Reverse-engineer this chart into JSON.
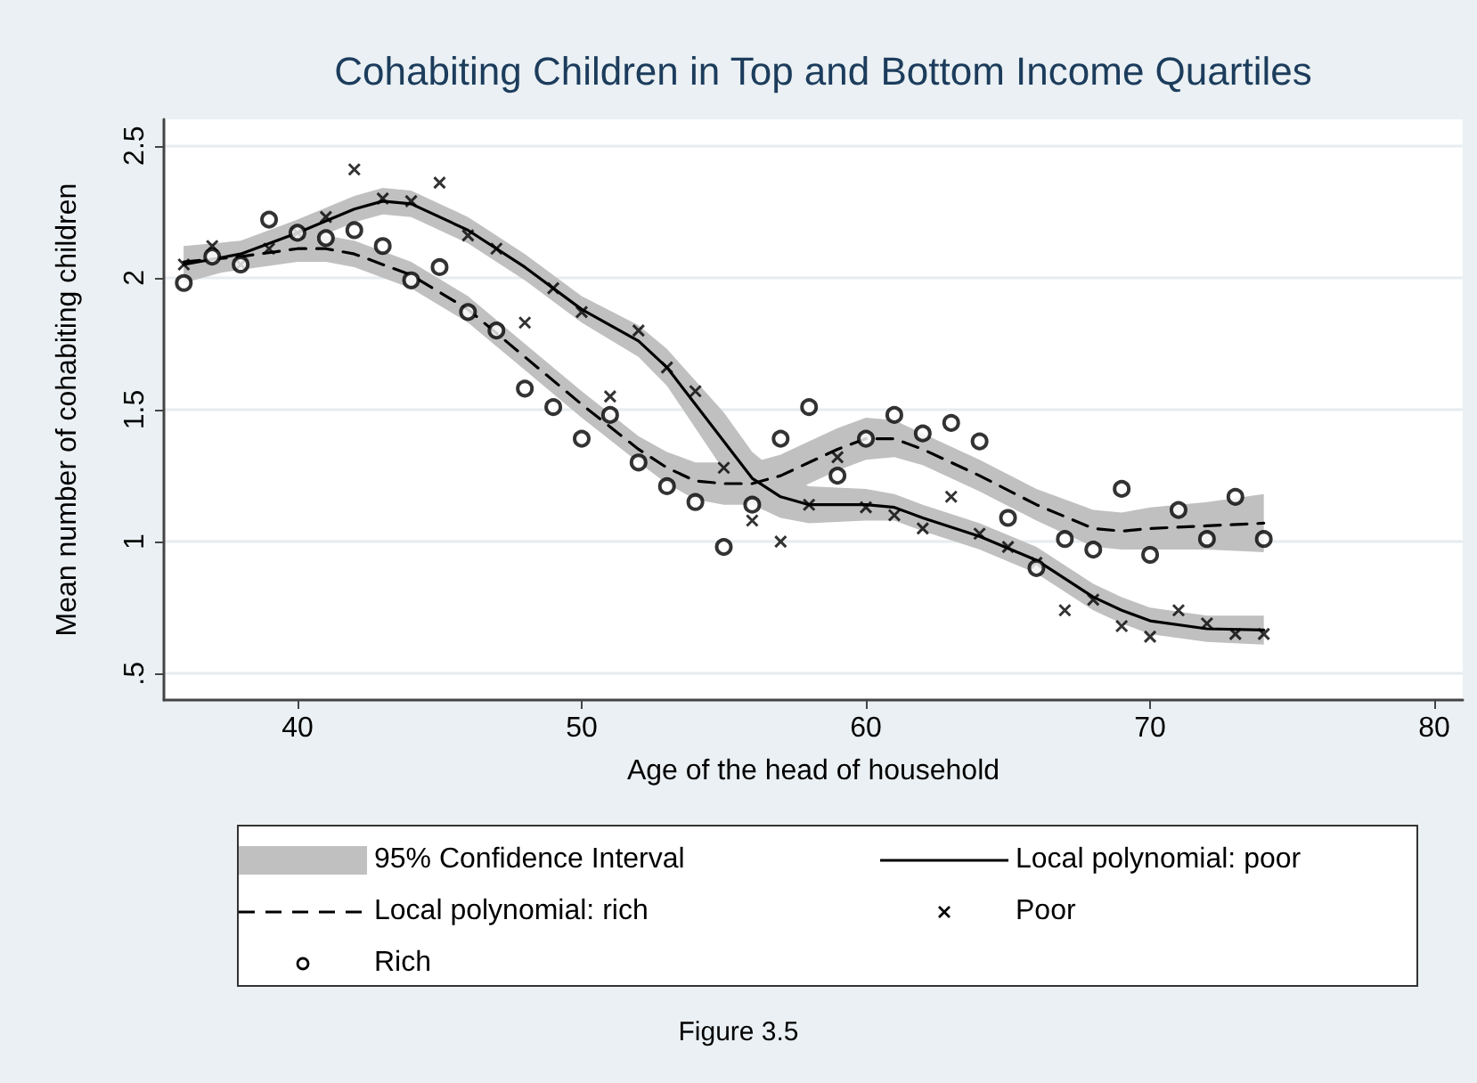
{
  "chart_data": {
    "type": "line",
    "title": "Cohabiting Children in Top and Bottom Income Quartiles",
    "xlabel": "Age of the head of household",
    "ylabel": "Mean number of cohabiting children",
    "annotations": [
      "95% Confidence Interval",
      "Figure 3.5"
    ],
    "xlim": [
      35.3,
      81
    ],
    "xticks": [
      40,
      50,
      60,
      70,
      80
    ],
    "ylim": [
      0.4,
      2.6
    ],
    "yticks": [
      {
        "value": 0.5,
        "label": ".5"
      },
      1,
      1.5,
      2,
      2.5
    ],
    "grid": "y",
    "legend": "bottom",
    "series": [
      {
        "name": "Local polynomial: poor",
        "type": "line",
        "color": "#000000",
        "marker": "none",
        "line_style": "solid",
        "x": [
          36,
          38,
          40,
          42,
          43,
          44,
          46,
          48,
          50,
          52,
          53,
          54,
          55,
          56,
          57,
          58,
          60,
          61,
          62,
          64,
          66,
          67,
          68,
          69,
          70,
          72,
          74
        ],
        "values": [
          2.05,
          2.09,
          2.17,
          2.26,
          2.29,
          2.28,
          2.18,
          2.04,
          1.88,
          1.76,
          1.66,
          1.52,
          1.38,
          1.24,
          1.17,
          1.14,
          1.14,
          1.13,
          1.09,
          1.02,
          0.93,
          0.86,
          0.79,
          0.74,
          0.7,
          0.67,
          0.665
        ],
        "lower": [
          1.98,
          2.04,
          2.12,
          2.21,
          2.24,
          2.23,
          2.13,
          1.99,
          1.83,
          1.7,
          1.59,
          1.43,
          1.27,
          1.14,
          1.09,
          1.07,
          1.08,
          1.08,
          1.04,
          0.97,
          0.88,
          0.81,
          0.74,
          0.69,
          0.65,
          0.62,
          0.61
        ],
        "upper": [
          2.12,
          2.14,
          2.22,
          2.31,
          2.34,
          2.33,
          2.23,
          2.09,
          1.93,
          1.82,
          1.73,
          1.61,
          1.49,
          1.34,
          1.25,
          1.21,
          1.2,
          1.18,
          1.14,
          1.07,
          0.98,
          0.91,
          0.84,
          0.79,
          0.75,
          0.72,
          0.72
        ]
      },
      {
        "name": "Local polynomial: rich",
        "type": "line",
        "color": "#000000",
        "marker": "none",
        "line_style": "dashed",
        "x": [
          36,
          38,
          40,
          41,
          42,
          44,
          46,
          48,
          50,
          52,
          53,
          54,
          55,
          56,
          57,
          58,
          59,
          60,
          61,
          62,
          64,
          66,
          68,
          69,
          70,
          72,
          74
        ],
        "values": [
          2.06,
          2.08,
          2.11,
          2.11,
          2.09,
          2.01,
          1.88,
          1.7,
          1.52,
          1.35,
          1.28,
          1.23,
          1.22,
          1.22,
          1.25,
          1.3,
          1.35,
          1.39,
          1.39,
          1.35,
          1.25,
          1.14,
          1.05,
          1.04,
          1.05,
          1.06,
          1.07
        ],
        "lower": [
          2.0,
          2.03,
          2.06,
          2.06,
          2.04,
          1.96,
          1.83,
          1.65,
          1.47,
          1.3,
          1.22,
          1.16,
          1.14,
          1.14,
          1.17,
          1.22,
          1.27,
          1.31,
          1.32,
          1.29,
          1.19,
          1.08,
          0.98,
          0.97,
          0.97,
          0.97,
          0.96
        ],
        "upper": [
          2.12,
          2.13,
          2.16,
          2.16,
          2.14,
          2.06,
          1.93,
          1.75,
          1.57,
          1.4,
          1.34,
          1.3,
          1.3,
          1.3,
          1.33,
          1.38,
          1.43,
          1.47,
          1.46,
          1.41,
          1.31,
          1.2,
          1.12,
          1.11,
          1.13,
          1.15,
          1.18
        ]
      },
      {
        "name": "Poor",
        "type": "scatter",
        "color": "#000000",
        "marker": "cross",
        "x": [
          36,
          37,
          38,
          39,
          40,
          41,
          42,
          43,
          44,
          45,
          46,
          47,
          48,
          49,
          50,
          51,
          52,
          53,
          54,
          55,
          56,
          57,
          58,
          59,
          60,
          61,
          62,
          63,
          64,
          65,
          66,
          67,
          68,
          69,
          70,
          71,
          72,
          73,
          74
        ],
        "values": [
          2.05,
          2.12,
          2.05,
          2.11,
          2.17,
          2.23,
          2.41,
          2.3,
          2.29,
          2.36,
          2.16,
          2.11,
          1.83,
          1.96,
          1.87,
          1.55,
          1.8,
          1.66,
          1.57,
          1.28,
          1.08,
          1.0,
          1.14,
          1.32,
          1.13,
          1.1,
          1.05,
          1.17,
          1.03,
          0.98,
          0.92,
          0.74,
          0.78,
          0.68,
          0.64,
          0.74,
          0.69,
          0.65,
          0.65
        ]
      },
      {
        "name": "Rich",
        "type": "scatter",
        "color": "#000000",
        "marker": "circle",
        "x": [
          36,
          37,
          38,
          39,
          40,
          41,
          42,
          43,
          44,
          45,
          46,
          47,
          48,
          49,
          50,
          51,
          52,
          53,
          54,
          55,
          56,
          57,
          58,
          59,
          60,
          61,
          62,
          63,
          64,
          65,
          66,
          67,
          68,
          69,
          70,
          71,
          72,
          73,
          74
        ],
        "values": [
          1.98,
          2.08,
          2.05,
          2.22,
          2.17,
          2.15,
          2.18,
          2.12,
          1.99,
          2.04,
          1.87,
          1.8,
          1.58,
          1.51,
          1.39,
          1.48,
          1.3,
          1.21,
          1.15,
          0.98,
          1.14,
          1.39,
          1.51,
          1.25,
          1.39,
          1.48,
          1.41,
          1.45,
          1.38,
          1.09,
          0.9,
          1.01,
          0.97,
          1.2,
          0.95,
          1.12,
          1.01,
          1.17,
          1.01
        ]
      }
    ]
  }
}
